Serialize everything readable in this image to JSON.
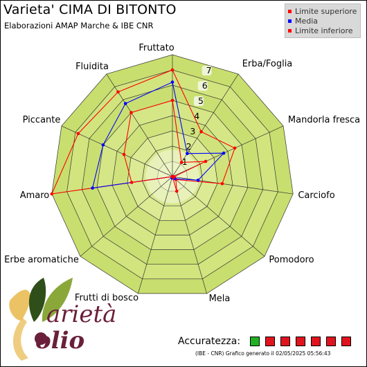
{
  "header": {
    "title": "Varieta' CIMA DI BITONTO",
    "subtitle": "Elaborazioni AMAP Marche & IBE CNR"
  },
  "legend": {
    "items": [
      {
        "label": "Limite superiore",
        "color": "#ff0000"
      },
      {
        "label": "Media",
        "color": "#0000ff"
      },
      {
        "label": "Limite inferiore",
        "color": "#ff0000"
      }
    ]
  },
  "chart_data": {
    "type": "radar",
    "categories": [
      "Fruttato",
      "Erba/Foglia",
      "Mandorla fresca",
      "Carciofo",
      "Pomodoro",
      "Mela",
      "Frutti di bosco",
      "Erbe aromatiche",
      "Amaro",
      "Piccante",
      "Fluidita"
    ],
    "rlim": [
      0,
      8
    ],
    "r_ticks": [
      "1",
      "2",
      "3",
      "4",
      "5",
      "6",
      "7"
    ],
    "grid": true,
    "series": [
      {
        "name": "Limite superiore",
        "color": "#ff0000",
        "values": [
          7.0,
          3.5,
          4.5,
          3.3,
          0.3,
          1.0,
          0.0,
          0.0,
          8.0,
          6.8,
          6.6
        ]
      },
      {
        "name": "Media",
        "color": "#0000ff",
        "values": [
          6.2,
          1.8,
          3.7,
          1.7,
          0.2,
          0.1,
          0.1,
          0.0,
          5.3,
          5.0,
          5.7
        ]
      },
      {
        "name": "Limite inferiore",
        "color": "#ff0000",
        "values": [
          5.0,
          1.1,
          2.4,
          0.1,
          0.1,
          0.0,
          0.0,
          0.0,
          2.7,
          3.5,
          5.0
        ]
      }
    ]
  },
  "footer": {
    "accuracy_label": "Accuratezza:",
    "accuracy_colors": [
      "#22b022",
      "#e0141e",
      "#e0141e",
      "#e0141e",
      "#e0141e",
      "#e0141e",
      "#e0141e"
    ],
    "credit": "(IBE - CNR) Grafico generato il 02/05/2025 05:56:43"
  },
  "logo": {
    "text": "Varietà Olio",
    "colors": {
      "leaf_dark": "#2f4f1a",
      "leaf_light": "#8aa83a",
      "accent": "#e8b84a",
      "brand": "#6b1f3a"
    }
  }
}
